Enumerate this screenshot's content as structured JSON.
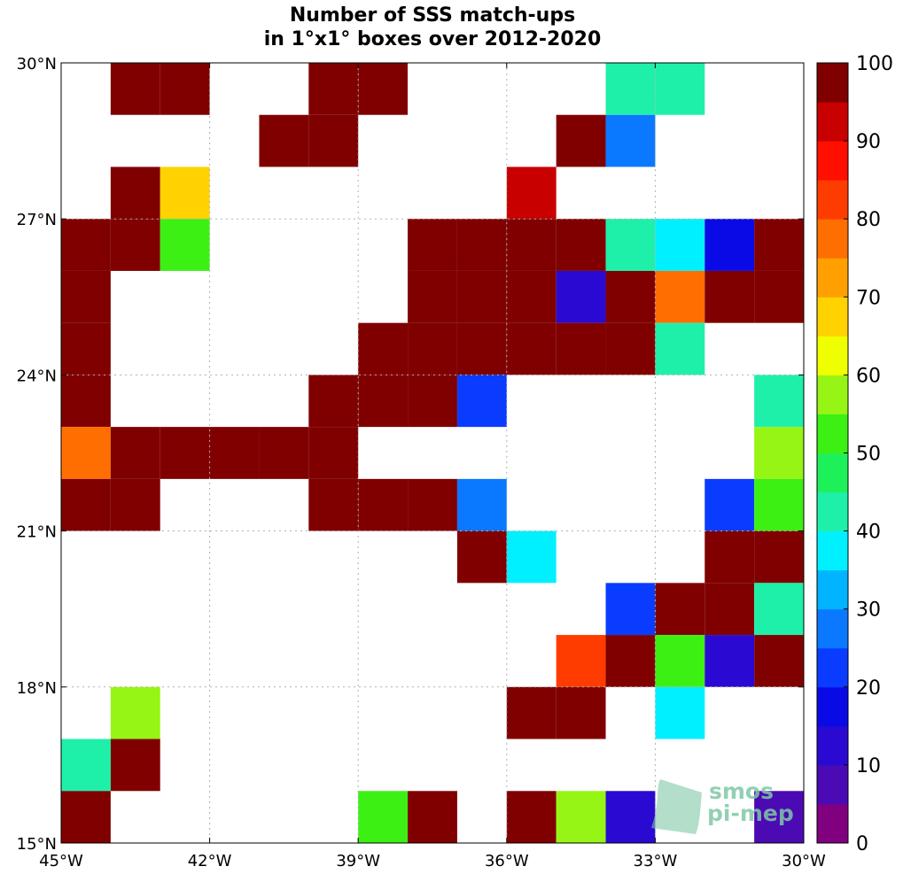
{
  "chart_data": {
    "type": "heatmap",
    "title": [
      "Number of SSS match-ups",
      "in 1°x1° boxes over 2012-2020"
    ],
    "xlabel": "",
    "ylabel": "",
    "xlim": [
      -45,
      -30
    ],
    "ylim": [
      15,
      30
    ],
    "x_ticks": [
      {
        "value": -45,
        "label": "45°W"
      },
      {
        "value": -42,
        "label": "42°W"
      },
      {
        "value": -39,
        "label": "39°W"
      },
      {
        "value": -36,
        "label": "36°W"
      },
      {
        "value": -33,
        "label": "33°W"
      },
      {
        "value": -30,
        "label": "30°W"
      }
    ],
    "y_ticks": [
      {
        "value": 30,
        "label": "30°N"
      },
      {
        "value": 27,
        "label": "27°N"
      },
      {
        "value": 24,
        "label": "24°N"
      },
      {
        "value": 21,
        "label": "21°N"
      },
      {
        "value": 18,
        "label": "18°N"
      },
      {
        "value": 15,
        "label": "15°N"
      }
    ],
    "grid": true,
    "colorbar": {
      "range": [
        0,
        100
      ],
      "levels": 18,
      "ticks": [
        0,
        10,
        20,
        30,
        40,
        50,
        60,
        70,
        80,
        90,
        100
      ],
      "colormap": [
        "#800080",
        "#4b0ab4",
        "#2a0ad2",
        "#0a0ae6",
        "#0a3cff",
        "#0a78ff",
        "#00b4ff",
        "#00f0ff",
        "#1ef0aa",
        "#1ef05a",
        "#3cf014",
        "#96f514",
        "#f0ff00",
        "#ffd200",
        "#ffa000",
        "#ff6e00",
        "#ff3c00",
        "#ff0f00",
        "#c80000",
        "#800000"
      ]
    },
    "cells_note": "Each cell: lon/lat of lower-left corner of 1°x1° box; v = match-up count (>=100 shown as 100). Empty boxes are not listed.",
    "cells": [
      {
        "lon": -44,
        "lat": 29,
        "v": 100
      },
      {
        "lon": -43,
        "lat": 29,
        "v": 100
      },
      {
        "lon": -40,
        "lat": 29,
        "v": 100
      },
      {
        "lon": -39,
        "lat": 29,
        "v": 100
      },
      {
        "lon": -34,
        "lat": 29,
        "v": 43
      },
      {
        "lon": -33,
        "lat": 29,
        "v": 43
      },
      {
        "lon": -41,
        "lat": 28,
        "v": 100
      },
      {
        "lon": -40,
        "lat": 28,
        "v": 100
      },
      {
        "lon": -35,
        "lat": 28,
        "v": 100
      },
      {
        "lon": -34,
        "lat": 28,
        "v": 27
      },
      {
        "lon": -44,
        "lat": 27,
        "v": 100
      },
      {
        "lon": -43,
        "lat": 27,
        "v": 68
      },
      {
        "lon": -36,
        "lat": 27,
        "v": 93
      },
      {
        "lon": -45,
        "lat": 26,
        "v": 100
      },
      {
        "lon": -44,
        "lat": 26,
        "v": 100
      },
      {
        "lon": -43,
        "lat": 26,
        "v": 50
      },
      {
        "lon": -38,
        "lat": 26,
        "v": 100
      },
      {
        "lon": -37,
        "lat": 26,
        "v": 100
      },
      {
        "lon": -36,
        "lat": 26,
        "v": 100
      },
      {
        "lon": -35,
        "lat": 26,
        "v": 100
      },
      {
        "lon": -34,
        "lat": 26,
        "v": 43
      },
      {
        "lon": -33,
        "lat": 26,
        "v": 38
      },
      {
        "lon": -32,
        "lat": 26,
        "v": 18
      },
      {
        "lon": -31,
        "lat": 26,
        "v": 100
      },
      {
        "lon": -45,
        "lat": 25,
        "v": 100
      },
      {
        "lon": -38,
        "lat": 25,
        "v": 100
      },
      {
        "lon": -37,
        "lat": 25,
        "v": 100
      },
      {
        "lon": -36,
        "lat": 25,
        "v": 100
      },
      {
        "lon": -35,
        "lat": 25,
        "v": 13
      },
      {
        "lon": -34,
        "lat": 25,
        "v": 100
      },
      {
        "lon": -33,
        "lat": 25,
        "v": 78
      },
      {
        "lon": -32,
        "lat": 25,
        "v": 100
      },
      {
        "lon": -31,
        "lat": 25,
        "v": 100
      },
      {
        "lon": -45,
        "lat": 24,
        "v": 100
      },
      {
        "lon": -39,
        "lat": 24,
        "v": 100
      },
      {
        "lon": -38,
        "lat": 24,
        "v": 100
      },
      {
        "lon": -37,
        "lat": 24,
        "v": 100
      },
      {
        "lon": -36,
        "lat": 24,
        "v": 100
      },
      {
        "lon": -35,
        "lat": 24,
        "v": 100
      },
      {
        "lon": -34,
        "lat": 24,
        "v": 100
      },
      {
        "lon": -33,
        "lat": 24,
        "v": 43
      },
      {
        "lon": -45,
        "lat": 23,
        "v": 100
      },
      {
        "lon": -40,
        "lat": 23,
        "v": 100
      },
      {
        "lon": -39,
        "lat": 23,
        "v": 100
      },
      {
        "lon": -38,
        "lat": 23,
        "v": 100
      },
      {
        "lon": -37,
        "lat": 23,
        "v": 22
      },
      {
        "lon": -31,
        "lat": 23,
        "v": 43
      },
      {
        "lon": -45,
        "lat": 22,
        "v": 78
      },
      {
        "lon": -44,
        "lat": 22,
        "v": 100
      },
      {
        "lon": -43,
        "lat": 22,
        "v": 100
      },
      {
        "lon": -42,
        "lat": 22,
        "v": 100
      },
      {
        "lon": -41,
        "lat": 22,
        "v": 100
      },
      {
        "lon": -40,
        "lat": 22,
        "v": 100
      },
      {
        "lon": -31,
        "lat": 22,
        "v": 57
      },
      {
        "lon": -45,
        "lat": 21,
        "v": 100
      },
      {
        "lon": -44,
        "lat": 21,
        "v": 100
      },
      {
        "lon": -40,
        "lat": 21,
        "v": 100
      },
      {
        "lon": -39,
        "lat": 21,
        "v": 100
      },
      {
        "lon": -38,
        "lat": 21,
        "v": 100
      },
      {
        "lon": -37,
        "lat": 21,
        "v": 27
      },
      {
        "lon": -32,
        "lat": 21,
        "v": 22
      },
      {
        "lon": -31,
        "lat": 21,
        "v": 52
      },
      {
        "lon": -37,
        "lat": 20,
        "v": 100
      },
      {
        "lon": -36,
        "lat": 20,
        "v": 38
      },
      {
        "lon": -32,
        "lat": 20,
        "v": 100
      },
      {
        "lon": -31,
        "lat": 20,
        "v": 100
      },
      {
        "lon": -34,
        "lat": 19,
        "v": 22
      },
      {
        "lon": -33,
        "lat": 19,
        "v": 100
      },
      {
        "lon": -32,
        "lat": 19,
        "v": 100
      },
      {
        "lon": -31,
        "lat": 19,
        "v": 43
      },
      {
        "lon": -35,
        "lat": 18,
        "v": 82
      },
      {
        "lon": -34,
        "lat": 18,
        "v": 100
      },
      {
        "lon": -33,
        "lat": 18,
        "v": 50
      },
      {
        "lon": -32,
        "lat": 18,
        "v": 13
      },
      {
        "lon": -31,
        "lat": 18,
        "v": 100
      },
      {
        "lon": -44,
        "lat": 17,
        "v": 57
      },
      {
        "lon": -36,
        "lat": 17,
        "v": 100
      },
      {
        "lon": -35,
        "lat": 17,
        "v": 100
      },
      {
        "lon": -33,
        "lat": 17,
        "v": 38
      },
      {
        "lon": -45,
        "lat": 16,
        "v": 43
      },
      {
        "lon": -44,
        "lat": 16,
        "v": 100
      },
      {
        "lon": -45,
        "lat": 15,
        "v": 100
      },
      {
        "lon": -39,
        "lat": 15,
        "v": 50
      },
      {
        "lon": -38,
        "lat": 15,
        "v": 100
      },
      {
        "lon": -36,
        "lat": 15,
        "v": 100
      },
      {
        "lon": -35,
        "lat": 15,
        "v": 57
      },
      {
        "lon": -34,
        "lat": 15,
        "v": 13
      },
      {
        "lon": -31,
        "lat": 15,
        "v": 8
      }
    ]
  },
  "logo": {
    "line1": "smos",
    "line2": "pi-mep",
    "color": "#7fc8a6"
  }
}
